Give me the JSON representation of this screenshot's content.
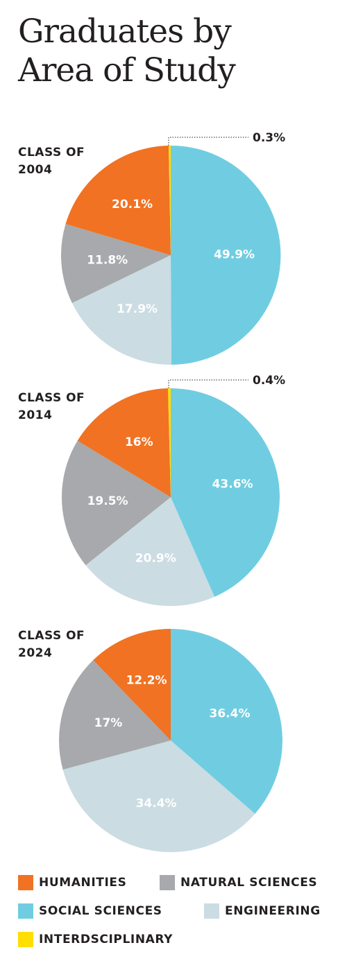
{
  "title_lines": [
    "Graduates by",
    "Area of Study"
  ],
  "legend": [
    {
      "key": "humanities",
      "label": "HUMANITIES",
      "color": "#f07222"
    },
    {
      "key": "natural",
      "label": "NATURAL SCIENCES",
      "color": "#a7a9ac"
    },
    {
      "key": "social",
      "label": "SOCIAL SCIENCES",
      "color": "#70cde1"
    },
    {
      "key": "engineering",
      "label": "ENGINEERING",
      "color": "#cbdce3"
    },
    {
      "key": "interdisciplinary",
      "label": "INTERDSCIPLINARY",
      "color": "#ffde00"
    }
  ],
  "chart_data": [
    {
      "type": "pie",
      "label_lines": [
        "CLASS OF",
        "2004"
      ],
      "slices": [
        {
          "category": "social",
          "value": 49.9,
          "label": "49.9%"
        },
        {
          "category": "engineering",
          "value": 17.9,
          "label": "17.9%"
        },
        {
          "category": "natural",
          "value": 11.8,
          "label": "11.8%"
        },
        {
          "category": "humanities",
          "value": 20.1,
          "label": "20.1%"
        },
        {
          "category": "interdisciplinary",
          "value": 0.3,
          "label": "0.3%"
        }
      ]
    },
    {
      "type": "pie",
      "label_lines": [
        "CLASS OF",
        "2014"
      ],
      "slices": [
        {
          "category": "social",
          "value": 43.6,
          "label": "43.6%"
        },
        {
          "category": "engineering",
          "value": 20.9,
          "label": "20.9%"
        },
        {
          "category": "natural",
          "value": 19.5,
          "label": "19.5%"
        },
        {
          "category": "humanities",
          "value": 16,
          "label": "16%"
        },
        {
          "category": "interdisciplinary",
          "value": 0.4,
          "label": "0.4%"
        }
      ]
    },
    {
      "type": "pie",
      "label_lines": [
        "CLASS OF",
        "2024"
      ],
      "slices": [
        {
          "category": "social",
          "value": 36.4,
          "label": "36.4%"
        },
        {
          "category": "engineering",
          "value": 34.4,
          "label": "34.4%"
        },
        {
          "category": "natural",
          "value": 17,
          "label": "17%"
        },
        {
          "category": "humanities",
          "value": 12.2,
          "label": "12.2%"
        }
      ]
    }
  ]
}
